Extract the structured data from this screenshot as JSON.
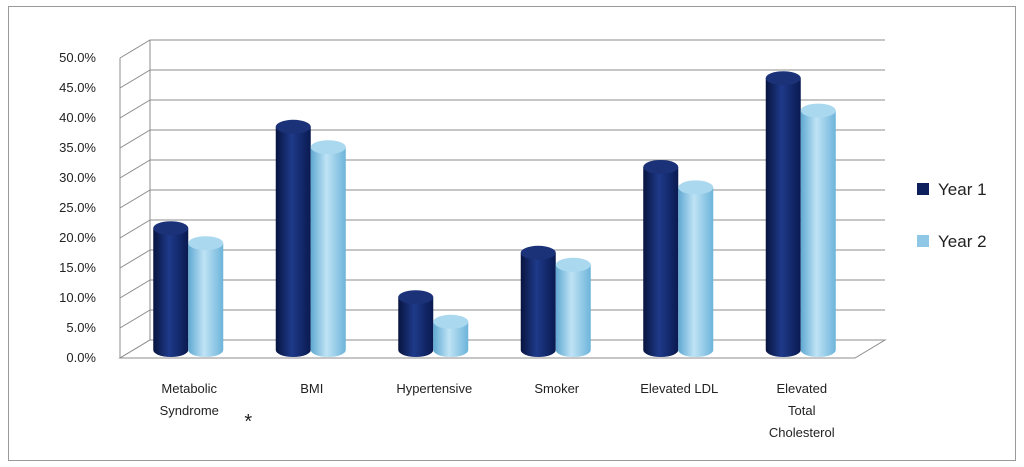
{
  "chart_data": {
    "type": "bar",
    "categories": [
      [
        "Metabolic",
        "Syndrome"
      ],
      [
        "BMI"
      ],
      [
        "Hypertensive"
      ],
      [
        "Smoker"
      ],
      [
        "Elevated LDL"
      ],
      [
        "Elevated",
        "Total",
        "Cholesterol"
      ]
    ],
    "category_markers": [
      "*",
      "",
      "",
      "",
      "",
      ""
    ],
    "series": [
      {
        "name": "Year 1",
        "color": "#0d1f5c",
        "values": [
          20.3,
          37.2,
          8.8,
          16.2,
          30.5,
          45.3
        ]
      },
      {
        "name": "Year 2",
        "color": "#8ec8e6",
        "values": [
          17.8,
          33.8,
          4.7,
          14.2,
          27.1,
          39.9
        ]
      }
    ],
    "y_ticks": [
      "0.0%",
      "5.0%",
      "10.0%",
      "15.0%",
      "20.0%",
      "25.0%",
      "30.0%",
      "35.0%",
      "40.0%",
      "45.0%",
      "50.0%"
    ],
    "ylim": [
      0,
      50
    ],
    "grid": true,
    "legend_position": "right",
    "title": "",
    "xlabel": "",
    "ylabel": ""
  }
}
